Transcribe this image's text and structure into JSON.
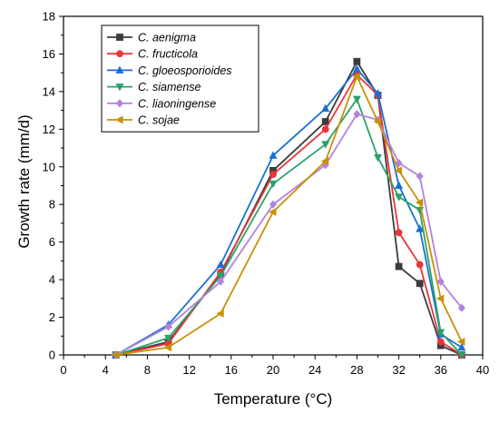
{
  "chart_data": {
    "type": "line",
    "xlabel": "Temperature (°C)",
    "ylabel": "Growth rate (mm/d)",
    "xlim": [
      0,
      40
    ],
    "ylim": [
      0,
      18
    ],
    "x_ticks": [
      0,
      4,
      8,
      12,
      16,
      20,
      24,
      28,
      32,
      36,
      40
    ],
    "y_ticks": [
      0,
      2,
      4,
      6,
      8,
      10,
      12,
      14,
      16,
      18
    ],
    "grid": false,
    "legend_position": "top-left",
    "series": [
      {
        "name": "C. aenigma",
        "color": "#3c3c3c",
        "marker": "square",
        "points": [
          [
            5,
            0
          ],
          [
            10,
            0.7
          ],
          [
            15,
            4.3
          ],
          [
            20,
            9.8
          ],
          [
            25,
            12.4
          ],
          [
            28,
            15.6
          ],
          [
            30,
            13.8
          ],
          [
            32,
            4.7
          ],
          [
            34,
            3.8
          ],
          [
            36,
            0.5
          ],
          [
            38,
            0.0
          ]
        ]
      },
      {
        "name": "C. fructicola",
        "color": "#e8363b",
        "marker": "circle",
        "points": [
          [
            5,
            0
          ],
          [
            10,
            0.6
          ],
          [
            15,
            4.4
          ],
          [
            20,
            9.6
          ],
          [
            25,
            12.0
          ],
          [
            28,
            14.9
          ],
          [
            30,
            13.8
          ],
          [
            32,
            6.5
          ],
          [
            34,
            4.8
          ],
          [
            36,
            0.7
          ],
          [
            38,
            0.0
          ]
        ]
      },
      {
        "name": "C. gloeosporioides",
        "color": "#1a6fd4",
        "marker": "triangle-up",
        "points": [
          [
            5,
            0
          ],
          [
            10,
            1.6
          ],
          [
            15,
            4.8
          ],
          [
            20,
            10.6
          ],
          [
            25,
            13.1
          ],
          [
            28,
            15.2
          ],
          [
            30,
            13.9
          ],
          [
            32,
            9.0
          ],
          [
            34,
            6.7
          ],
          [
            36,
            1.1
          ],
          [
            38,
            0.4
          ]
        ]
      },
      {
        "name": "C. siamense",
        "color": "#29a36a",
        "marker": "triangle-down",
        "points": [
          [
            5,
            0
          ],
          [
            10,
            0.9
          ],
          [
            15,
            4.2
          ],
          [
            20,
            9.1
          ],
          [
            25,
            11.2
          ],
          [
            28,
            13.6
          ],
          [
            30,
            10.5
          ],
          [
            32,
            8.4
          ],
          [
            34,
            7.7
          ],
          [
            36,
            1.2
          ],
          [
            38,
            0.0
          ]
        ]
      },
      {
        "name": "C. liaoningense",
        "color": "#b482e0",
        "marker": "diamond",
        "points": [
          [
            5,
            0
          ],
          [
            10,
            1.5
          ],
          [
            15,
            3.9
          ],
          [
            20,
            8.0
          ],
          [
            25,
            10.1
          ],
          [
            28,
            12.8
          ],
          [
            30,
            12.5
          ],
          [
            32,
            10.2
          ],
          [
            34,
            9.5
          ],
          [
            36,
            3.9
          ],
          [
            38,
            2.5
          ]
        ]
      },
      {
        "name": "C. sojae",
        "color": "#c89106",
        "marker": "triangle-left",
        "points": [
          [
            5,
            0
          ],
          [
            10,
            0.4
          ],
          [
            15,
            2.2
          ],
          [
            20,
            7.6
          ],
          [
            25,
            10.3
          ],
          [
            28,
            14.8
          ],
          [
            30,
            12.4
          ],
          [
            32,
            9.8
          ],
          [
            34,
            8.1
          ],
          [
            36,
            3.0
          ],
          [
            38,
            0.7
          ]
        ]
      }
    ]
  }
}
